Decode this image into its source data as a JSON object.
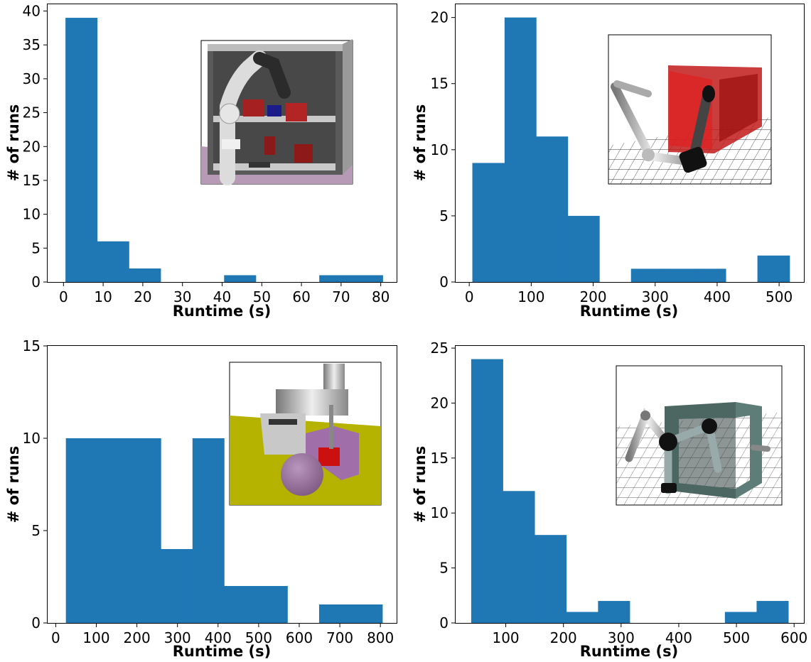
{
  "chart_data": [
    {
      "type": "bar",
      "subtype": "histogram",
      "xlabel": "Runtime (s)",
      "ylabel": "# of runs",
      "xlim": [
        -4,
        84
      ],
      "ylim": [
        0,
        41
      ],
      "xticks": [
        0,
        10,
        20,
        30,
        40,
        50,
        60,
        70,
        80
      ],
      "yticks": [
        0,
        5,
        10,
        15,
        20,
        25,
        30,
        35,
        40
      ],
      "bin_edges": [
        0.5,
        8.5,
        16.5,
        24.5,
        32.5,
        40.5,
        48.5,
        56.5,
        64.5,
        72.5,
        80.5
      ],
      "counts": [
        39,
        6,
        2,
        0,
        0,
        1,
        0,
        0,
        1,
        1
      ],
      "color": "#1f77b4",
      "inset": "shelf-arm"
    },
    {
      "type": "bar",
      "subtype": "histogram",
      "xlabel": "Runtime (s)",
      "ylabel": "# of runs",
      "xlim": [
        -22,
        540
      ],
      "ylim": [
        0,
        21
      ],
      "xticks": [
        0,
        100,
        200,
        300,
        400,
        500
      ],
      "yticks": [
        0,
        5,
        10,
        15,
        20
      ],
      "bin_edges": [
        5,
        57,
        108,
        159,
        210,
        261,
        312,
        363,
        414,
        465,
        517
      ],
      "counts": [
        9,
        20,
        11,
        5,
        0,
        1,
        1,
        1,
        0,
        2
      ],
      "color": "#1f77b4",
      "inset": "red-box-arm"
    },
    {
      "type": "bar",
      "subtype": "histogram",
      "xlabel": "Runtime (s)",
      "ylabel": "# of runs",
      "xlim": [
        -20,
        840
      ],
      "ylim": [
        0,
        15
      ],
      "xticks": [
        0,
        100,
        200,
        300,
        400,
        500,
        600,
        700,
        800
      ],
      "yticks": [
        0,
        5,
        10,
        15
      ],
      "bin_edges": [
        25,
        103,
        181,
        259,
        337,
        415,
        493,
        571,
        649,
        727,
        805
      ],
      "counts": [
        10,
        10,
        10,
        4,
        10,
        2,
        2,
        0,
        1,
        1
      ],
      "color": "#1f77b4",
      "inset": "scara-sphere"
    },
    {
      "type": "bar",
      "subtype": "histogram",
      "xlabel": "Runtime (s)",
      "ylabel": "# of runs",
      "xlim": [
        13,
        617
      ],
      "ylim": [
        0,
        25.2
      ],
      "xticks": [
        100,
        200,
        300,
        400,
        500,
        600
      ],
      "yticks": [
        0,
        5,
        10,
        15,
        20,
        25
      ],
      "bin_edges": [
        40,
        95,
        150,
        205,
        260,
        315,
        370,
        425,
        480,
        535,
        590
      ],
      "counts": [
        24,
        12,
        8,
        1,
        2,
        0,
        0,
        0,
        1,
        2
      ],
      "color": "#1f77b4",
      "inset": "green-box-arm"
    }
  ]
}
